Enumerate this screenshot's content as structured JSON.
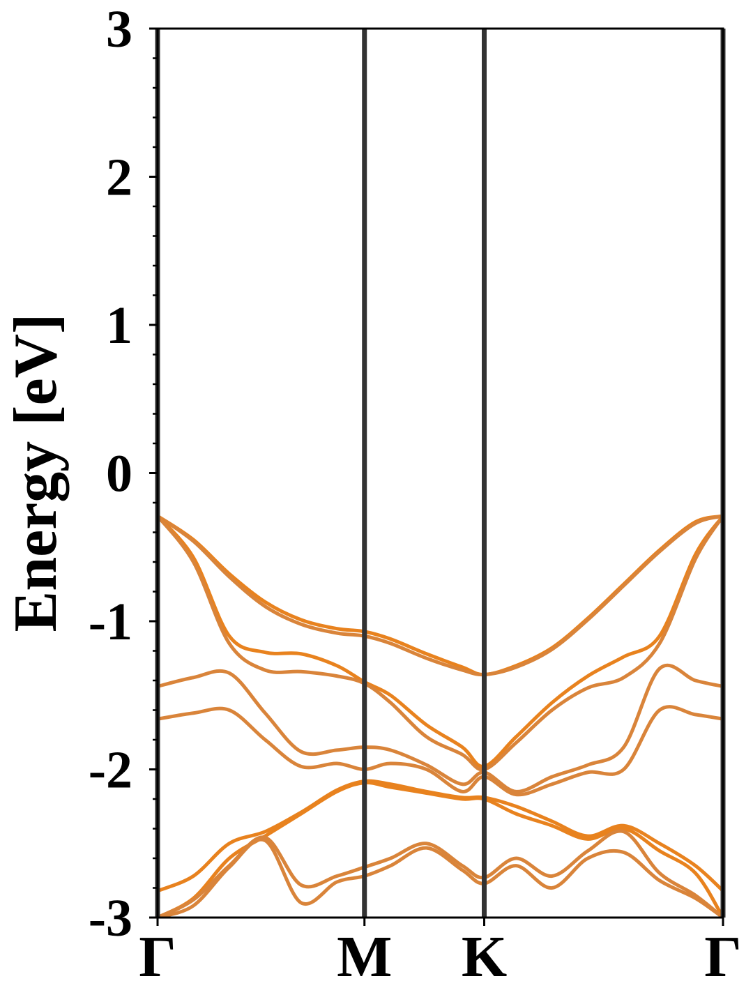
{
  "chart_data": {
    "type": "line",
    "y_label": "Energy [eV]",
    "x": [
      0,
      0.1,
      0.2,
      0.3,
      0.4,
      0.5,
      0.577,
      0.65,
      0.75,
      0.85,
      0.911,
      1.0,
      1.1,
      1.2,
      1.3,
      1.4,
      1.5,
      1.577
    ],
    "series": [
      {
        "color": "#e8821e",
        "values": [
          -0.29,
          -0.45,
          -0.68,
          -0.87,
          -0.99,
          -1.05,
          -1.07,
          -1.12,
          -1.22,
          -1.31,
          -1.36,
          -1.3,
          -1.18,
          -0.98,
          -0.75,
          -0.52,
          -0.33,
          -0.29
        ]
      },
      {
        "color": "#d9843a",
        "values": [
          -0.29,
          -0.46,
          -0.7,
          -0.9,
          -1.02,
          -1.08,
          -1.1,
          -1.15,
          -1.25,
          -1.33,
          -1.36,
          -1.31,
          -1.19,
          -0.99,
          -0.76,
          -0.53,
          -0.34,
          -0.29
        ]
      },
      {
        "color": "#e8821e",
        "values": [
          -0.29,
          -0.57,
          -1.1,
          -1.21,
          -1.22,
          -1.3,
          -1.41,
          -1.5,
          -1.7,
          -1.85,
          -1.98,
          -1.78,
          -1.55,
          -1.37,
          -1.24,
          -1.1,
          -0.55,
          -0.29
        ]
      },
      {
        "color": "#d9843a",
        "values": [
          -0.29,
          -0.6,
          -1.15,
          -1.33,
          -1.34,
          -1.37,
          -1.42,
          -1.55,
          -1.78,
          -1.9,
          -2.0,
          -1.82,
          -1.6,
          -1.45,
          -1.38,
          -1.15,
          -0.58,
          -0.29
        ]
      },
      {
        "color": "#d9843a",
        "values": [
          -1.44,
          -1.38,
          -1.35,
          -1.62,
          -1.88,
          -1.87,
          -1.85,
          -1.87,
          -1.97,
          -2.1,
          -2.02,
          -2.15,
          -2.05,
          -1.97,
          -1.85,
          -1.32,
          -1.4,
          -1.44
        ]
      },
      {
        "color": "#d9843a",
        "values": [
          -1.66,
          -1.62,
          -1.6,
          -1.8,
          -1.98,
          -1.96,
          -2.0,
          -1.96,
          -2.0,
          -2.15,
          -2.05,
          -2.17,
          -2.1,
          -2.02,
          -2.0,
          -1.6,
          -1.63,
          -1.66
        ]
      },
      {
        "color": "#e8821e",
        "values": [
          -2.82,
          -2.72,
          -2.5,
          -2.42,
          -2.29,
          -2.14,
          -2.08,
          -2.1,
          -2.15,
          -2.19,
          -2.19,
          -2.25,
          -2.35,
          -2.45,
          -2.38,
          -2.5,
          -2.65,
          -2.82
        ]
      },
      {
        "color": "#e8821e",
        "values": [
          -3.0,
          -2.87,
          -2.6,
          -2.45,
          -2.3,
          -2.15,
          -2.09,
          -2.12,
          -2.16,
          -2.2,
          -2.2,
          -2.3,
          -2.38,
          -2.47,
          -2.4,
          -2.55,
          -2.7,
          -3.0
        ]
      },
      {
        "color": "#d9843a",
        "values": [
          -3.0,
          -2.88,
          -2.65,
          -2.46,
          -2.78,
          -2.72,
          -2.66,
          -2.6,
          -2.5,
          -2.65,
          -2.73,
          -2.6,
          -2.72,
          -2.55,
          -2.42,
          -2.7,
          -2.85,
          -3.0
        ]
      },
      {
        "color": "#d9843a",
        "values": [
          -3.0,
          -2.92,
          -2.66,
          -2.48,
          -2.9,
          -2.76,
          -2.72,
          -2.65,
          -2.53,
          -2.68,
          -2.77,
          -2.65,
          -2.8,
          -2.6,
          -2.56,
          -2.75,
          -2.87,
          -3.0
        ]
      }
    ],
    "xlim": [
      0,
      1.577
    ],
    "xticks": [
      {
        "value": 0,
        "label": "Γ"
      },
      {
        "value": 0.577,
        "label": "M"
      },
      {
        "value": 0.911,
        "label": "K"
      },
      {
        "value": 1.577,
        "label": "Γ"
      }
    ],
    "ylim": [
      -3,
      3
    ],
    "yticks": [
      -3,
      -2,
      -1,
      0,
      1,
      2,
      3
    ],
    "yminorticks": [
      -2.8,
      -2.6,
      -2.4,
      -2.2,
      -1.8,
      -1.6,
      -1.4,
      -1.2,
      -0.8,
      -0.6,
      -0.4,
      -0.2,
      0.2,
      0.4,
      0.6,
      0.8,
      1.2,
      1.4,
      1.6,
      1.8,
      2.2,
      2.4,
      2.6,
      2.8
    ],
    "grid": "x",
    "grid_color": "#333333"
  }
}
